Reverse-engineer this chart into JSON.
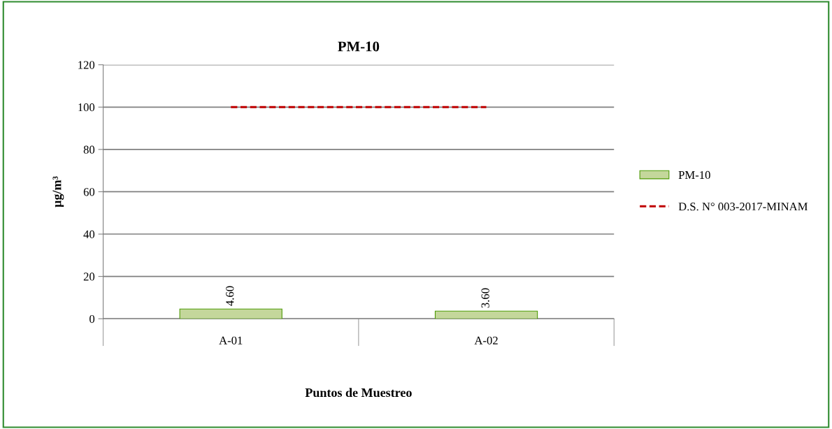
{
  "chart_data": {
    "type": "bar",
    "title": "PM-10",
    "xlabel": "Puntos de Muestreo",
    "ylabel": "µg/m³",
    "categories": [
      "A-01",
      "A-02"
    ],
    "series": [
      {
        "name": "PM-10",
        "color": "#c4d79b",
        "values": [
          4.6,
          3.6
        ],
        "value_labels": [
          "4.60",
          "3.60"
        ]
      },
      {
        "name": "D.S. N° 003-2017-MINAM",
        "type": "line",
        "color": "#c00000",
        "line_style": "dashed",
        "values": [
          100,
          100
        ]
      }
    ],
    "ylim": [
      0,
      120
    ],
    "yticks": [
      0,
      20,
      40,
      60,
      80,
      100,
      120
    ],
    "grid": "y",
    "legend": "right",
    "marker": "none"
  }
}
